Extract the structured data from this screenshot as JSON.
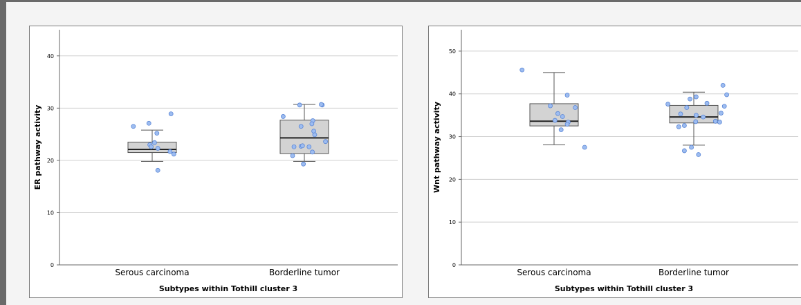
{
  "chart_data": [
    {
      "type": "box",
      "ylabel": "ER pathway activity",
      "xlabel": "Subtypes within Tothill cluster 3",
      "ylim": [
        0,
        45
      ],
      "yticks": [
        0,
        10,
        20,
        30,
        40
      ],
      "grid": true,
      "categories": [
        "Serous carcinoma",
        "Borderline tumor"
      ],
      "boxes": [
        {
          "min": 19.8,
          "q1": 21.5,
          "median": 22.1,
          "q3": 23.5,
          "max": 25.8
        },
        {
          "min": 19.8,
          "q1": 21.3,
          "median": 24.3,
          "q3": 27.7,
          "max": 30.7
        }
      ],
      "points": [
        [
          [
            -0.4,
            26.5
          ],
          [
            -0.07,
            27.1
          ],
          [
            0.4,
            28.9
          ],
          [
            -0.05,
            23.0
          ],
          [
            0.05,
            23.4
          ],
          [
            0.1,
            25.2
          ],
          [
            -0.02,
            22.6
          ],
          [
            0.12,
            22.3
          ],
          [
            0.38,
            21.7
          ],
          [
            0.46,
            21.2
          ],
          [
            0.12,
            18.1
          ]
        ],
        [
          [
            -0.45,
            28.4
          ],
          [
            -0.1,
            30.6
          ],
          [
            0.38,
            30.6
          ],
          [
            0.36,
            30.7
          ],
          [
            0.18,
            27.6
          ],
          [
            0.16,
            27.0
          ],
          [
            -0.07,
            26.5
          ],
          [
            0.2,
            25.6
          ],
          [
            0.22,
            24.9
          ],
          [
            0.45,
            23.6
          ],
          [
            -0.22,
            22.6
          ],
          [
            -0.07,
            22.7
          ],
          [
            -0.04,
            22.8
          ],
          [
            0.1,
            22.6
          ],
          [
            0.17,
            21.6
          ],
          [
            -0.25,
            20.9
          ],
          [
            -0.02,
            19.3
          ]
        ]
      ]
    },
    {
      "type": "box",
      "ylabel": "Wnt pathway activity",
      "xlabel": "Subtypes within Tothill cluster 3",
      "ylim": [
        0,
        55
      ],
      "yticks": [
        0,
        10,
        20,
        30,
        40,
        50
      ],
      "grid": true,
      "categories": [
        "Serous carcinoma",
        "Borderline tumor"
      ],
      "boxes": [
        {
          "min": 28.1,
          "q1": 32.5,
          "median": 33.6,
          "q3": 37.7,
          "max": 45.0
        },
        {
          "min": 28.0,
          "q1": 33.2,
          "median": 34.6,
          "q3": 37.3,
          "max": 40.4
        }
      ],
      "points": [
        [
          [
            -0.68,
            45.6
          ],
          [
            0.28,
            39.7
          ],
          [
            -0.08,
            37.2
          ],
          [
            0.08,
            35.4
          ],
          [
            0.18,
            34.7
          ],
          [
            0.02,
            33.8
          ],
          [
            0.45,
            36.8
          ],
          [
            0.3,
            33.4
          ],
          [
            0.28,
            32.9
          ],
          [
            0.15,
            31.6
          ],
          [
            0.65,
            27.5
          ]
        ],
        [
          [
            -0.55,
            37.6
          ],
          [
            0.62,
            42.0
          ],
          [
            0.7,
            39.8
          ],
          [
            0.05,
            39.3
          ],
          [
            -0.08,
            38.8
          ],
          [
            0.28,
            37.8
          ],
          [
            0.65,
            37.1
          ],
          [
            -0.15,
            36.8
          ],
          [
            0.58,
            35.5
          ],
          [
            -0.28,
            35.3
          ],
          [
            0.05,
            35.0
          ],
          [
            0.2,
            34.6
          ],
          [
            0.46,
            33.6
          ],
          [
            0.55,
            33.4
          ],
          [
            0.04,
            33.5
          ],
          [
            -0.2,
            32.6
          ],
          [
            -0.32,
            32.3
          ],
          [
            -0.05,
            27.5
          ],
          [
            -0.2,
            26.7
          ],
          [
            0.1,
            25.8
          ]
        ]
      ]
    }
  ]
}
